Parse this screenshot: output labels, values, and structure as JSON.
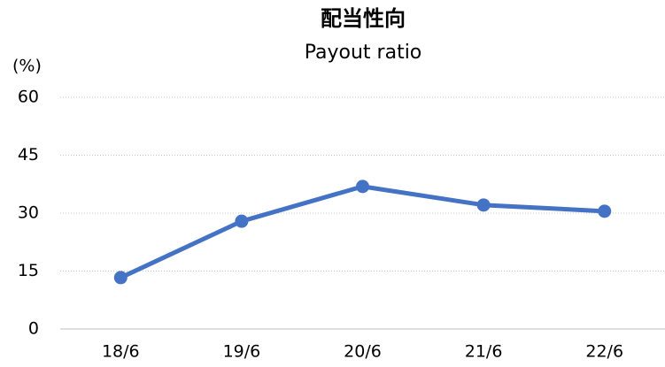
{
  "chart_data": {
    "type": "line",
    "title": "配当性向",
    "subtitle": "Payout ratio",
    "y_label": "(%)",
    "categories": [
      "18/6",
      "19/6",
      "20/6",
      "21/6",
      "22/6"
    ],
    "values": [
      13.3,
      27.9,
      36.9,
      32.1,
      30.5
    ],
    "color": "#4472c4",
    "ylim": [
      0,
      60
    ],
    "yticks": [
      0,
      15,
      30,
      45,
      60
    ],
    "grid": true
  }
}
